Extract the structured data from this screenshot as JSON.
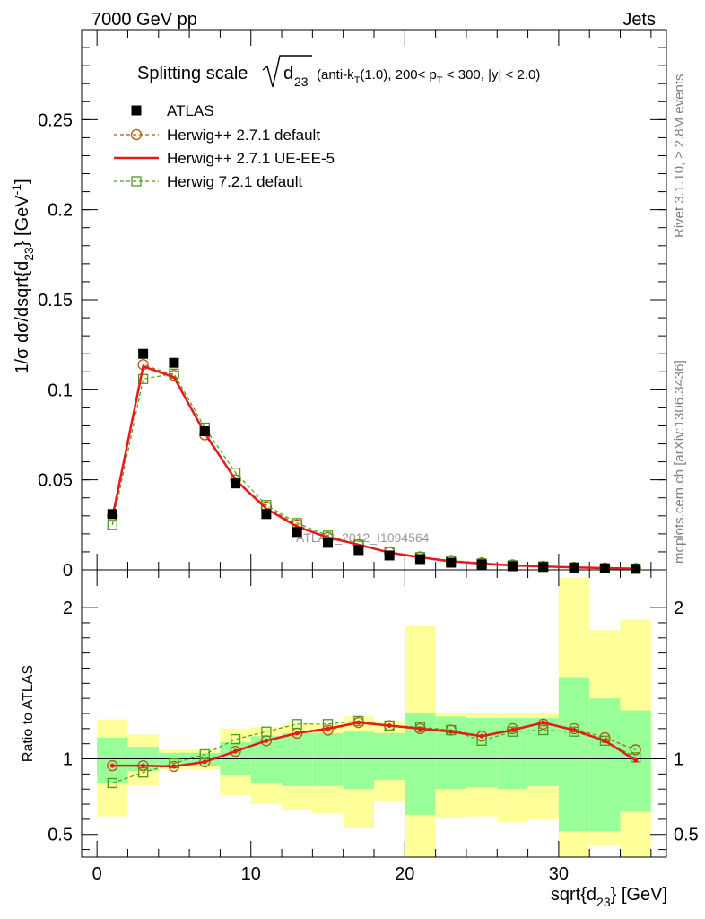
{
  "header": {
    "left": "7000 GeV pp",
    "right": "Jets"
  },
  "side_labels": {
    "rivet": "Rivet 3.1.10, ≥ 2.8M events",
    "mcplots": "mcplots.cern.ch [arXiv:1306.3436]"
  },
  "watermark": "ATLAS_2012_I1094564",
  "title": {
    "prefix": "Splitting scale",
    "root_sym": "d",
    "root_sub": "23",
    "cut1": "(anti-k",
    "cut1_sub": "T",
    "cut2": "(1.0), 200< p",
    "cut2_sub": "T",
    "cut3": " < 300, |y| < 2.0)"
  },
  "colors": {
    "atlas": "#000000",
    "herwig271_default": "#b35900",
    "herwig271_ueee5": "#e41a1c",
    "herwig721_default": "#4d9a1a",
    "band_inner": "#99ff99",
    "band_outer": "#ffff99"
  },
  "chart_data": [
    {
      "type": "scatter",
      "panel": "main",
      "ylabel": "1/σ dσ/dsqrt{d23} [GeV^-1]",
      "xlim": [
        -1,
        37
      ],
      "ylim": [
        0,
        0.3
      ],
      "yticks": [
        0,
        0.05,
        0.1,
        0.15,
        0.2,
        0.25
      ],
      "ytick_labels": [
        "0",
        "0.05",
        "0.1",
        "0.15",
        "0.2",
        "0.25"
      ],
      "x": [
        1,
        3,
        5,
        7,
        9,
        11,
        13,
        15,
        17,
        19,
        21,
        23,
        25,
        27,
        29,
        31,
        33,
        35
      ],
      "series": [
        {
          "name": "ATLAS",
          "key": "atlas",
          "marker": "filled-square",
          "values": [
            0.031,
            0.12,
            0.115,
            0.077,
            0.048,
            0.031,
            0.021,
            0.015,
            0.011,
            0.008,
            0.006,
            0.004,
            0.003,
            0.002,
            0.0016,
            0.0012,
            0.0008,
            0.0006
          ]
        },
        {
          "name": "Herwig++ 2.7.1 default",
          "key": "herwig271_default",
          "marker": "open-circle",
          "line": "dashed",
          "values": [
            0.03,
            0.114,
            0.108,
            0.075,
            0.05,
            0.035,
            0.025,
            0.018,
            0.014,
            0.0098,
            0.0072,
            0.0052,
            0.0039,
            0.0028,
            0.002,
            0.0015,
            0.0011,
            0.0008
          ]
        },
        {
          "name": "Herwig++ 2.7.1 UE-EE-5",
          "key": "herwig271_ueee5",
          "marker": "none",
          "line": "solid",
          "values": [
            0.029,
            0.113,
            0.107,
            0.076,
            0.05,
            0.034,
            0.024,
            0.018,
            0.014,
            0.0096,
            0.007,
            0.0047,
            0.0035,
            0.0025,
            0.0019,
            0.0014,
            0.001,
            0.0007
          ]
        },
        {
          "name": "Herwig 7.2.1 default",
          "key": "herwig721_default",
          "marker": "open-square",
          "line": "dashed",
          "values": [
            0.025,
            0.106,
            0.109,
            0.079,
            0.054,
            0.036,
            0.026,
            0.019,
            0.014,
            0.0099,
            0.0071,
            0.0049,
            0.0035,
            0.0025,
            0.0019,
            0.0014,
            0.0009,
            0.0006
          ]
        }
      ],
      "legend": "top-left"
    },
    {
      "type": "line",
      "panel": "ratio",
      "ylabel": "Ratio to ATLAS",
      "xlabel": "sqrt{d23} [GeV]",
      "xlim": [
        -1,
        37
      ],
      "ylim": [
        0.35,
        2.25
      ],
      "xticks": [
        0,
        10,
        20,
        30
      ],
      "xtick_labels": [
        "0",
        "10",
        "20",
        "30"
      ],
      "yticks": [
        0.5,
        1,
        2
      ],
      "ytick_labels": [
        "0.5",
        "1",
        "2"
      ],
      "x": [
        1,
        3,
        5,
        7,
        9,
        11,
        13,
        15,
        17,
        19,
        21,
        23,
        25,
        27,
        29,
        31,
        33,
        35
      ],
      "bands": {
        "inner_low": [
          0.84,
          0.92,
          0.95,
          0.95,
          0.89,
          0.84,
          0.82,
          0.82,
          0.8,
          0.86,
          0.63,
          0.8,
          0.81,
          0.8,
          0.82,
          0.52,
          0.52,
          0.65
        ],
        "inner_high": [
          1.14,
          1.08,
          1.04,
          1.04,
          1.11,
          1.15,
          1.17,
          1.17,
          1.18,
          1.17,
          1.3,
          1.28,
          1.27,
          1.27,
          1.27,
          1.54,
          1.4,
          1.32
        ],
        "outer_low": [
          0.62,
          0.82,
          0.93,
          0.93,
          0.76,
          0.7,
          0.66,
          0.64,
          0.54,
          0.72,
          0.2,
          0.61,
          0.62,
          0.58,
          0.6,
          0.2,
          0.43,
          0.2
        ],
        "outer_high": [
          1.26,
          1.16,
          1.06,
          1.06,
          1.2,
          1.21,
          1.23,
          1.23,
          1.28,
          1.25,
          1.88,
          1.3,
          1.3,
          1.3,
          1.3,
          2.2,
          1.85,
          1.92
        ]
      },
      "series": [
        {
          "name": "Herwig++ 2.7.1 default",
          "key": "herwig271_default",
          "values": [
            0.955,
            0.955,
            0.95,
            0.98,
            1.05,
            1.12,
            1.17,
            1.19,
            1.24,
            1.22,
            1.2,
            1.19,
            1.15,
            1.2,
            1.23,
            1.2,
            1.14,
            1.06
          ]
        },
        {
          "name": "Herwig++ 2.7.1 UE-EE-5",
          "key": "herwig271_ueee5",
          "values": [
            0.955,
            0.955,
            0.95,
            0.98,
            1.05,
            1.12,
            1.17,
            1.2,
            1.24,
            1.22,
            1.2,
            1.18,
            1.15,
            1.19,
            1.24,
            1.19,
            1.12,
            0.99
          ]
        },
        {
          "name": "Herwig 7.2.1 default",
          "key": "herwig721_default",
          "values": [
            0.84,
            0.91,
            0.97,
            1.03,
            1.13,
            1.18,
            1.23,
            1.23,
            1.25,
            1.22,
            1.21,
            1.19,
            1.12,
            1.18,
            1.19,
            1.18,
            1.12,
            1.01
          ]
        }
      ]
    }
  ]
}
